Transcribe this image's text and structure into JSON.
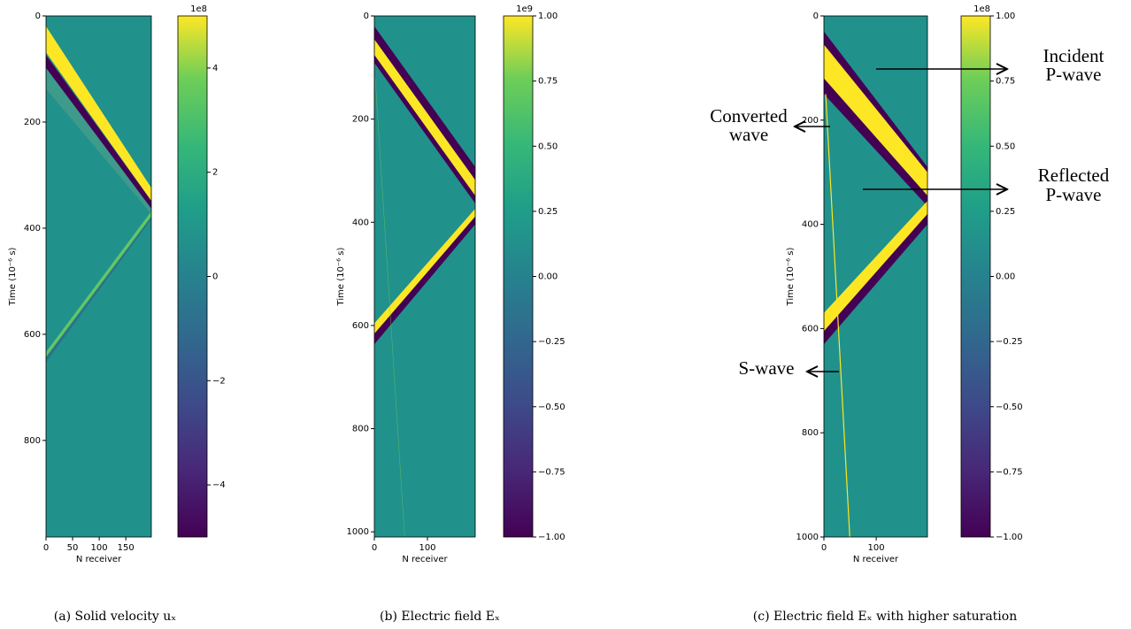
{
  "chart_data": [
    {
      "type": "heatmap",
      "xlabel": "N receiver",
      "ylabel": "Time (10⁻⁶ s)",
      "xlim": [
        0,
        198
      ],
      "xticks": [
        0,
        50,
        100,
        150
      ],
      "ylim": [
        0,
        982
      ],
      "yticks": [
        0,
        200,
        400,
        600,
        800
      ],
      "clim": [
        -5,
        5
      ],
      "cticks": [
        {
          "value": -4,
          "label": "−4"
        },
        {
          "value": -2,
          "label": "−2"
        },
        0,
        2,
        4
      ],
      "colorbar_offset": "1e8",
      "caption": "(a) Solid velocity uₓ"
    },
    {
      "type": "heatmap",
      "xlabel": "N receiver",
      "ylabel": "Time (10⁻⁶ s)",
      "xlim": [
        0,
        190
      ],
      "xticks": [
        0,
        100
      ],
      "ylim": [
        0,
        1010
      ],
      "yticks": [
        0,
        200,
        400,
        600,
        800,
        1000
      ],
      "clim": [
        -1,
        1
      ],
      "cticks": [
        {
          "value": -1,
          "label": "−1.00"
        },
        {
          "value": -0.75,
          "label": "−0.75"
        },
        {
          "value": -0.5,
          "label": "−0.50"
        },
        {
          "value": -0.25,
          "label": "−0.25"
        },
        {
          "value": 0,
          "label": "0.00"
        },
        {
          "value": 0.25,
          "label": "0.25"
        },
        {
          "value": 0.5,
          "label": "0.50"
        },
        {
          "value": 0.75,
          "label": "0.75"
        },
        {
          "value": 1,
          "label": "1.00"
        }
      ],
      "colorbar_offset": "1e9",
      "caption": "(b) Electric field Eₓ"
    },
    {
      "type": "heatmap",
      "xlabel": "N receiver",
      "ylabel": "Time (10⁻⁶ s)",
      "xlim": [
        0,
        198
      ],
      "xticks": [
        0,
        100
      ],
      "ylim": [
        0,
        1000
      ],
      "yticks": [
        0,
        200,
        400,
        600,
        800,
        1000
      ],
      "clim": [
        -1,
        1
      ],
      "cticks": [
        {
          "value": -1,
          "label": "−1.00"
        },
        {
          "value": -0.75,
          "label": "−0.75"
        },
        {
          "value": -0.5,
          "label": "−0.50"
        },
        {
          "value": -0.25,
          "label": "−0.25"
        },
        {
          "value": 0,
          "label": "0.00"
        },
        {
          "value": 0.25,
          "label": "0.25"
        },
        {
          "value": 0.5,
          "label": "0.50"
        },
        {
          "value": 0.75,
          "label": "0.75"
        },
        {
          "value": 1,
          "label": "1.00"
        }
      ],
      "colorbar_offset": "1e8",
      "caption": "(c) Electric field Eₓ with higher saturation",
      "annotations": [
        {
          "lines": [
            "Incident",
            "P-wave"
          ]
        },
        {
          "lines": [
            "Converted",
            "wave"
          ]
        },
        {
          "lines": [
            "Reflected",
            "P-wave"
          ]
        },
        {
          "lines": [
            "S-wave"
          ]
        }
      ]
    }
  ]
}
